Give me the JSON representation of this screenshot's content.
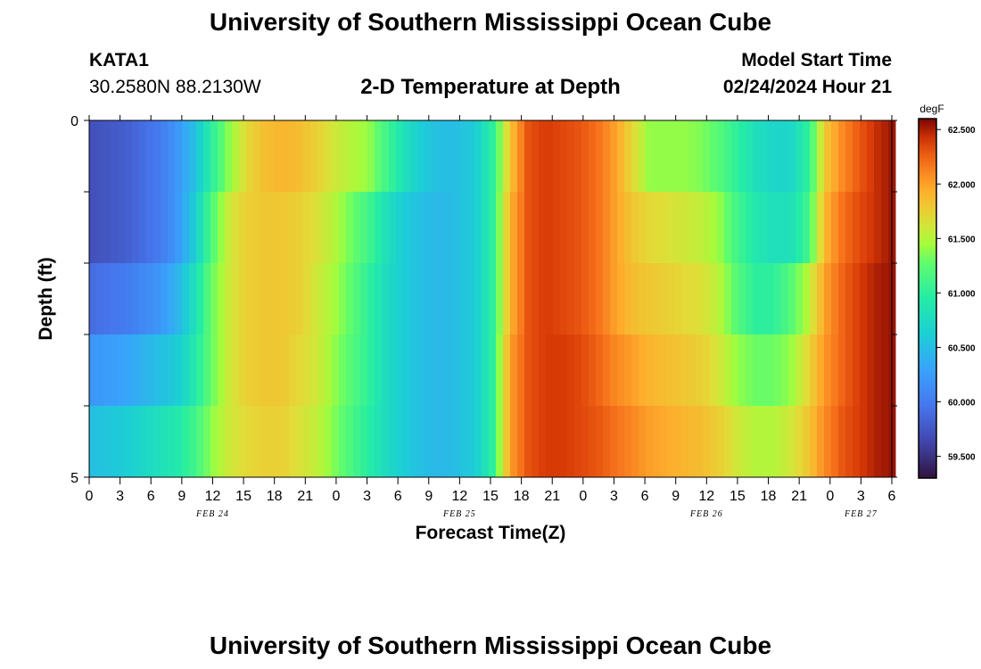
{
  "header": {
    "title": "University of Southern Mississippi Ocean Cube",
    "station": "KATA1",
    "coords": "30.2580N  88.2130W",
    "subtitle": "2-D Temperature at Depth",
    "start_label": "Model Start Time",
    "start_value": "02/24/2024 Hour 21"
  },
  "footer": {
    "title": "University of Southern Mississippi Ocean Cube"
  },
  "chart_data": {
    "type": "heatmap",
    "title": "2-D Temperature at Depth",
    "xlabel": "Forecast Time(Z)",
    "ylabel": "Depth (ft)",
    "ylim": [
      0,
      5
    ],
    "y_ticks": [
      "0",
      "5"
    ],
    "x_tick_labels": [
      "0",
      "3",
      "6",
      "9",
      "12",
      "15",
      "18",
      "21",
      "0",
      "3",
      "6",
      "9",
      "12",
      "15",
      "18",
      "21",
      "0",
      "3",
      "6",
      "9",
      "12",
      "15",
      "18",
      "21",
      "0",
      "3",
      "6"
    ],
    "date_labels": [
      "FEB 24",
      "FEB 25",
      "FEB 26",
      "FEB 27"
    ],
    "colorbar": {
      "unit": "degF",
      "min": 59.3,
      "max": 62.6,
      "ticks": [
        "59.500",
        "60.000",
        "60.500",
        "61.000",
        "61.500",
        "62.000",
        "62.500"
      ]
    },
    "series": [
      {
        "values": [
          59.7,
          59.75,
          59.8,
          59.9,
          60.0,
          60.2,
          60.5,
          61.0,
          61.4,
          61.7,
          61.85,
          61.9,
          61.85,
          61.75,
          61.6,
          61.5,
          61.4,
          61.1,
          60.8,
          60.6,
          60.5,
          60.5,
          60.6,
          61.0,
          61.8,
          62.3,
          62.4,
          62.35,
          62.3,
          62.2,
          62.0,
          61.7,
          61.4,
          61.4,
          61.4,
          61.35,
          61.2,
          61.0,
          60.8,
          60.7,
          60.7,
          61.0,
          61.8,
          62.1,
          62.3,
          62.45,
          62.55
        ]
      },
      {
        "values": [
          59.7,
          59.75,
          59.8,
          59.9,
          60.0,
          60.2,
          60.6,
          61.2,
          61.6,
          61.75,
          61.8,
          61.8,
          61.75,
          61.65,
          61.5,
          61.3,
          61.1,
          60.8,
          60.6,
          60.5,
          60.45,
          60.5,
          60.6,
          61.0,
          61.9,
          62.3,
          62.4,
          62.35,
          62.3,
          62.2,
          62.0,
          61.8,
          61.7,
          61.65,
          61.6,
          61.55,
          61.4,
          61.1,
          60.9,
          60.8,
          60.8,
          61.1,
          61.9,
          62.2,
          62.35,
          62.45,
          62.55
        ]
      },
      {
        "values": [
          59.9,
          59.95,
          60.0,
          60.1,
          60.2,
          60.4,
          60.8,
          61.3,
          61.6,
          61.75,
          61.8,
          61.8,
          61.75,
          61.6,
          61.45,
          61.25,
          61.0,
          60.75,
          60.6,
          60.5,
          60.45,
          60.5,
          60.6,
          61.0,
          61.9,
          62.3,
          62.4,
          62.35,
          62.3,
          62.2,
          62.0,
          61.85,
          61.8,
          61.75,
          61.7,
          61.65,
          61.5,
          61.2,
          61.0,
          61.0,
          61.2,
          61.5,
          62.0,
          62.25,
          62.4,
          62.5,
          62.55
        ]
      },
      {
        "values": [
          60.2,
          60.25,
          60.3,
          60.4,
          60.5,
          60.6,
          60.9,
          61.3,
          61.6,
          61.75,
          61.8,
          61.8,
          61.7,
          61.6,
          61.4,
          61.2,
          61.0,
          60.75,
          60.6,
          60.5,
          60.45,
          60.5,
          60.6,
          61.0,
          62.0,
          62.3,
          62.4,
          62.4,
          62.35,
          62.25,
          62.1,
          62.0,
          61.9,
          61.85,
          61.8,
          61.75,
          61.6,
          61.4,
          61.3,
          61.3,
          61.4,
          61.7,
          62.05,
          62.25,
          62.4,
          62.5,
          62.55
        ]
      },
      {
        "values": [
          60.5,
          60.55,
          60.6,
          60.7,
          60.8,
          60.9,
          61.1,
          61.4,
          61.6,
          61.7,
          61.75,
          61.75,
          61.65,
          61.55,
          61.35,
          61.15,
          60.95,
          60.75,
          60.6,
          60.5,
          60.45,
          60.5,
          60.6,
          61.0,
          62.0,
          62.3,
          62.4,
          62.4,
          62.35,
          62.3,
          62.2,
          62.1,
          62.0,
          61.95,
          61.9,
          61.85,
          61.75,
          61.6,
          61.5,
          61.5,
          61.6,
          61.8,
          62.1,
          62.3,
          62.4,
          62.5,
          62.55
        ]
      }
    ]
  }
}
